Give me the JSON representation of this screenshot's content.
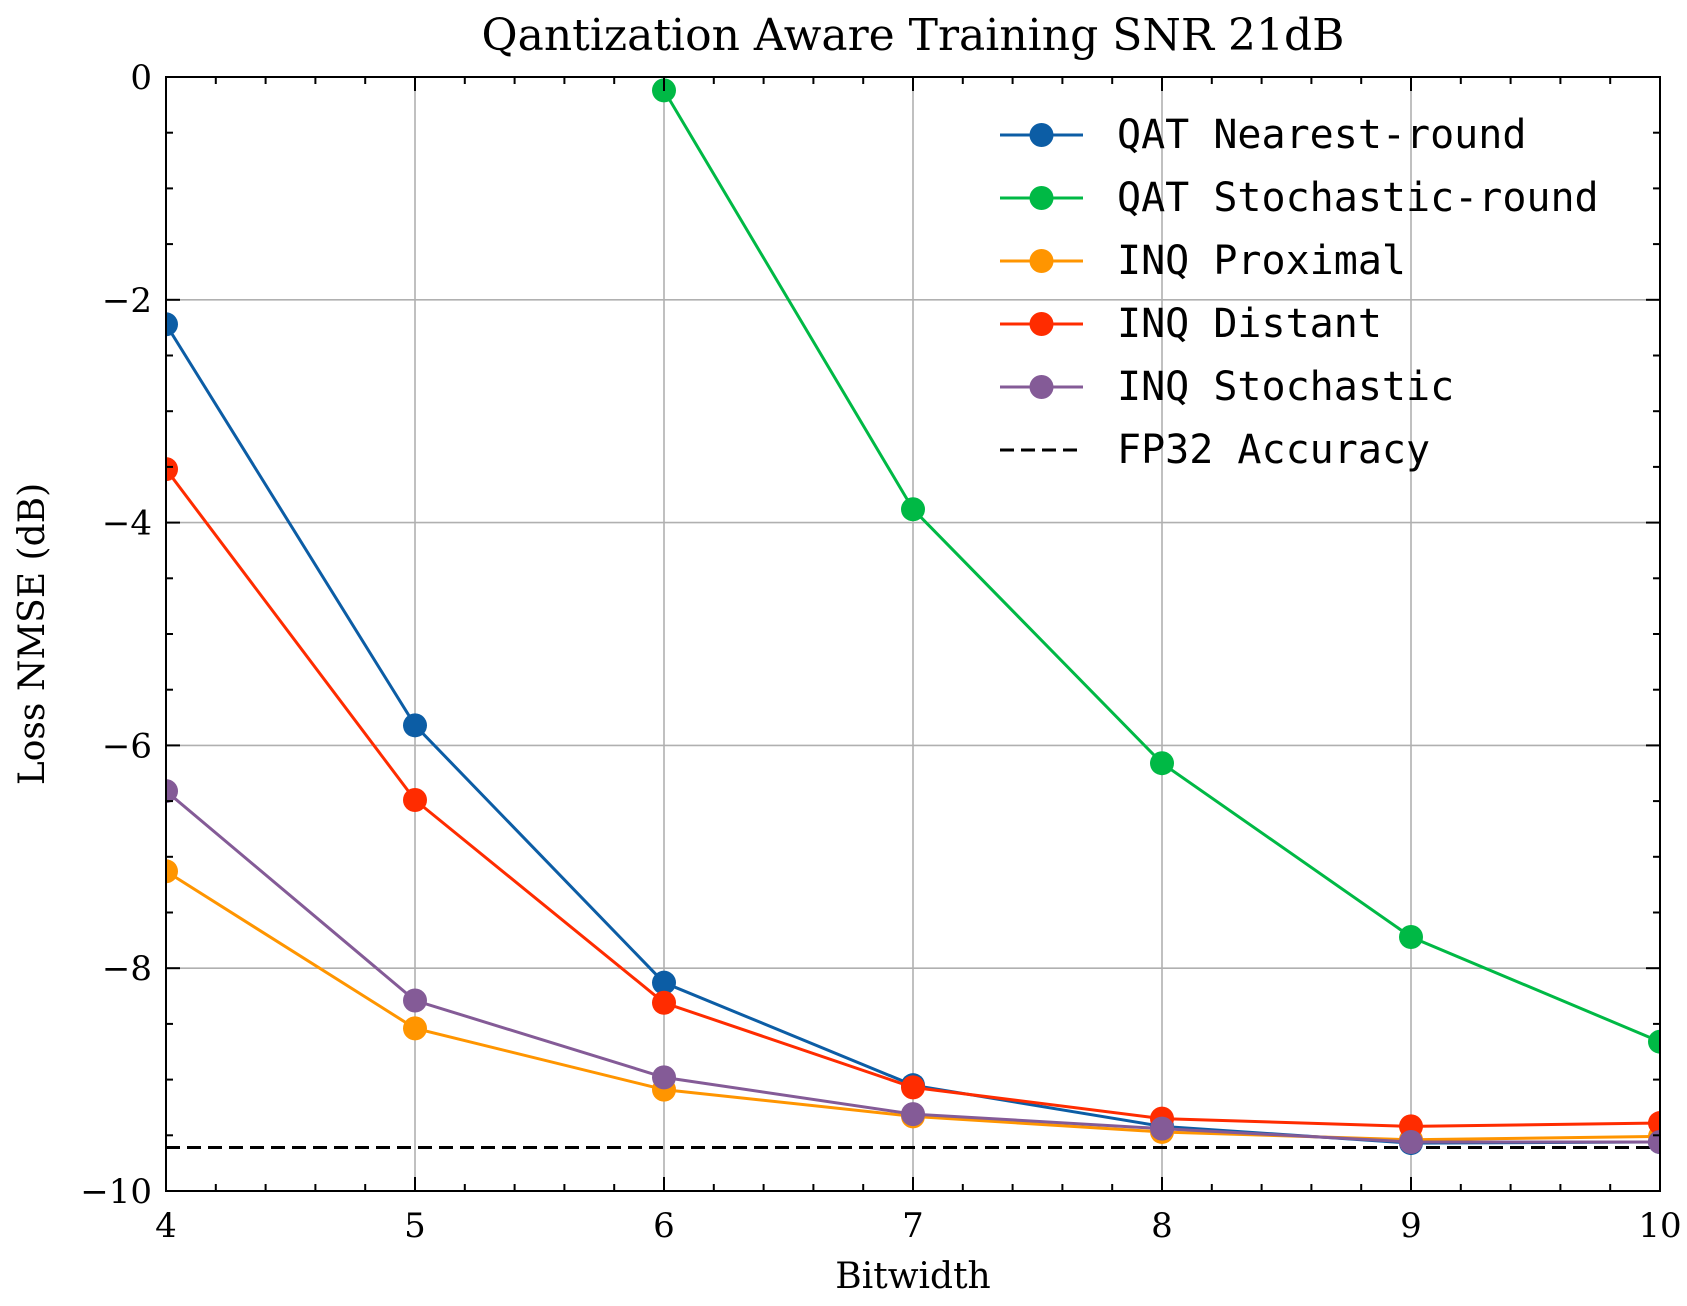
{
  "chart_data": {
    "type": "line",
    "title": "Qantization Aware Training SNR 21dB",
    "xlabel": "Bitwidth",
    "ylabel": "Loss NMSE (dB)",
    "xlim": [
      4,
      10
    ],
    "ylim": [
      -10,
      0
    ],
    "x_ticks": [
      4,
      5,
      6,
      7,
      8,
      9,
      10
    ],
    "y_ticks": [
      0,
      -2,
      -4,
      -6,
      -8,
      -10
    ],
    "x_tick_labels": [
      "4",
      "5",
      "6",
      "7",
      "8",
      "9",
      "10"
    ],
    "y_tick_labels": [
      "0",
      "−2",
      "−4",
      "−6",
      "−8",
      "−10"
    ],
    "grid": true,
    "legend_position": "top-right",
    "series": [
      {
        "name": "QAT Nearest-round",
        "color": "#0c5da5",
        "x": [
          4,
          5,
          6,
          7,
          8,
          9,
          10
        ],
        "y": [
          -2.22,
          -5.82,
          -8.13,
          -9.05,
          -9.42,
          -9.57,
          -9.56
        ]
      },
      {
        "name": "QAT Stochastic-round",
        "color": "#00b945",
        "x": [
          6,
          7,
          8,
          9,
          10
        ],
        "y": [
          -0.12,
          -3.88,
          -6.16,
          -7.72,
          -8.66
        ]
      },
      {
        "name": "INQ Proximal",
        "color": "#ff9500",
        "x": [
          4,
          5,
          6,
          7,
          8,
          9,
          10
        ],
        "y": [
          -7.13,
          -8.54,
          -9.09,
          -9.33,
          -9.47,
          -9.54,
          -9.51
        ]
      },
      {
        "name": "INQ Distant",
        "color": "#ff2c00",
        "x": [
          4,
          5,
          6,
          7,
          8,
          9,
          10
        ],
        "y": [
          -3.52,
          -6.49,
          -8.31,
          -9.07,
          -9.35,
          -9.42,
          -9.39
        ]
      },
      {
        "name": "INQ Stochastic",
        "color": "#845b97",
        "x": [
          4,
          5,
          6,
          7,
          8,
          9,
          10
        ],
        "y": [
          -6.41,
          -8.29,
          -8.98,
          -9.31,
          -9.44,
          -9.56,
          -9.56
        ]
      }
    ],
    "reference_lines": [
      {
        "name": "FP32 Accuracy",
        "color": "#000000",
        "style": "dashed",
        "y": -9.61
      }
    ]
  }
}
